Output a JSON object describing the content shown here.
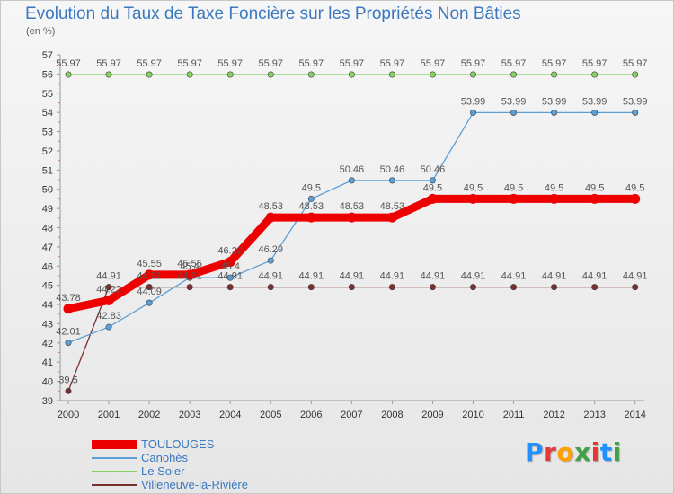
{
  "chart_data": {
    "type": "line",
    "title": "Evolution du Taux de Taxe Foncière sur les Propriétés Non Bâties",
    "subtitle": "(en %)",
    "x": [
      "2000",
      "2001",
      "2002",
      "2003",
      "2004",
      "2005",
      "2006",
      "2007",
      "2008",
      "2009",
      "2010",
      "2011",
      "2012",
      "2013",
      "2014"
    ],
    "ylim": [
      39,
      57
    ],
    "yticks": [
      39,
      40,
      41,
      42,
      43,
      44,
      45,
      46,
      47,
      48,
      49,
      50,
      51,
      52,
      53,
      54,
      55,
      56,
      57
    ],
    "grid": false,
    "legend_position": "bottom-left",
    "series": [
      {
        "name": "TOULOUGES",
        "color": "#ee0000",
        "values": [
          43.78,
          44.22,
          45.55,
          45.55,
          46.22,
          48.53,
          48.53,
          48.53,
          48.53,
          49.5,
          49.5,
          49.5,
          49.5,
          49.5,
          49.5
        ],
        "labels": [
          "43.78",
          "44.22",
          "45.55",
          "45.55",
          "46.22",
          "48.53",
          "48.53",
          "48.53",
          "48.53",
          "49.5",
          "49.5",
          "49.5",
          "49.5",
          "49.5",
          "49.5"
        ]
      },
      {
        "name": "Canohès",
        "color": "#5c9fd6",
        "values": [
          42.01,
          42.83,
          44.09,
          45.4,
          45.4,
          46.29,
          49.5,
          50.46,
          50.46,
          50.46,
          53.99,
          53.99,
          53.99,
          53.99,
          53.99
        ],
        "labels": [
          "42.01",
          "42.83",
          "44.09",
          "45.4",
          "45.4",
          "46.29",
          "49.5",
          "50.46",
          "50.46",
          "50.46",
          "53.99",
          "53.99",
          "53.99",
          "53.99",
          "53.99"
        ]
      },
      {
        "name": "Le Soler",
        "color": "#88d060",
        "values": [
          55.97,
          55.97,
          55.97,
          55.97,
          55.97,
          55.97,
          55.97,
          55.97,
          55.97,
          55.97,
          55.97,
          55.97,
          55.97,
          55.97,
          55.97
        ],
        "labels": [
          "55.97",
          "55.97",
          "55.97",
          "55.97",
          "55.97",
          "55.97",
          "55.97",
          "55.97",
          "55.97",
          "55.97",
          "55.97",
          "55.97",
          "55.97",
          "55.97",
          "55.97"
        ]
      },
      {
        "name": "Villeneuve-la-Rivière",
        "color": "#7a3030",
        "values": [
          39.5,
          44.91,
          44.91,
          44.91,
          44.91,
          44.91,
          44.91,
          44.91,
          44.91,
          44.91,
          44.91,
          44.91,
          44.91,
          44.91,
          44.91
        ],
        "labels": [
          "39.5",
          "44.91",
          "44.91",
          "44.91",
          "44.91",
          "44.91",
          "44.91",
          "44.91",
          "44.91",
          "44.91",
          "44.91",
          "44.91",
          "44.91",
          "44.91",
          "44.91"
        ]
      }
    ]
  },
  "logo": {
    "text": "Proxiti",
    "colors": [
      "#1e90ff",
      "#e53935",
      "#ffa000",
      "#43a047"
    ]
  }
}
